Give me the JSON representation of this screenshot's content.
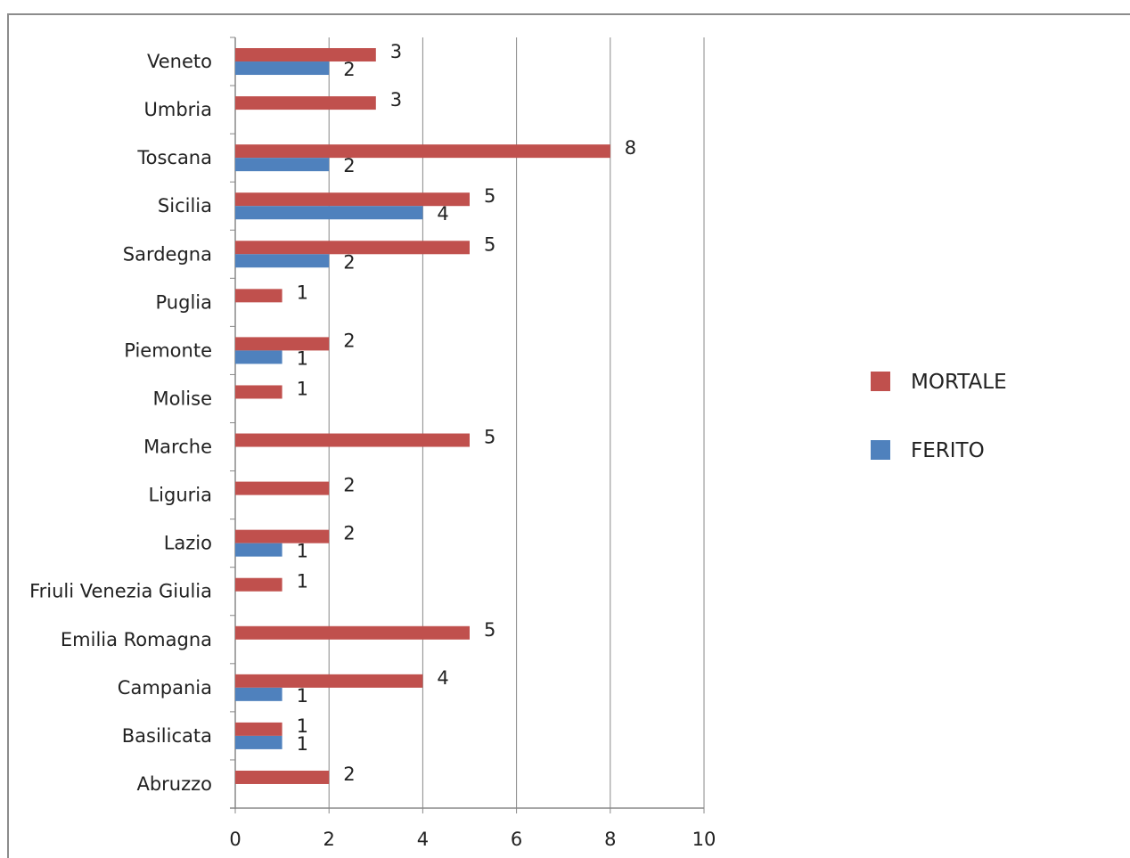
{
  "chart_data": {
    "type": "bar",
    "orientation": "horizontal",
    "categories": [
      "Veneto",
      "Umbria",
      "Toscana",
      "Sicilia",
      "Sardegna",
      "Puglia",
      "Piemonte",
      "Molise",
      "Marche",
      "Liguria",
      "Lazio",
      "Friuli Venezia Giulia",
      "Emilia Romagna",
      "Campania",
      "Basilicata",
      "Abruzzo"
    ],
    "series": [
      {
        "name": "MORTALE",
        "color": "#c0504d",
        "values": [
          3,
          3,
          8,
          5,
          5,
          1,
          2,
          1,
          5,
          2,
          2,
          1,
          5,
          4,
          1,
          2
        ]
      },
      {
        "name": "FERITO",
        "color": "#4f81bd",
        "values": [
          2,
          null,
          2,
          4,
          2,
          null,
          1,
          null,
          null,
          null,
          1,
          null,
          null,
          1,
          1,
          null
        ]
      }
    ],
    "xlim": [
      0,
      10
    ],
    "xticks": [
      "0",
      "2",
      "4",
      "6",
      "8",
      "10"
    ],
    "grid": true,
    "legend_position": "right",
    "data_labels": true
  }
}
